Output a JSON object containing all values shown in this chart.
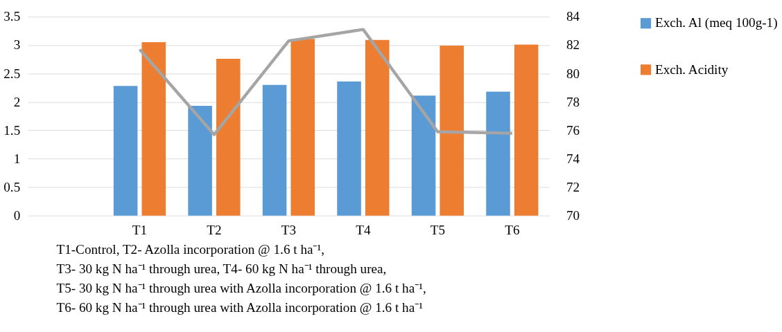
{
  "chart_data": {
    "type": "bar",
    "categories": [
      null,
      "T1",
      "T2",
      "T3",
      "T4",
      "T5",
      "T6"
    ],
    "series": [
      {
        "name": "Exch. Al (meq 100g-1)",
        "color": "#5b9bd5",
        "values": [
          null,
          2.28,
          1.93,
          2.3,
          2.36,
          2.11,
          2.18
        ]
      },
      {
        "name": "Exch. Acidity",
        "color": "#ed7d31",
        "values": [
          null,
          3.05,
          2.76,
          3.11,
          3.09,
          2.99,
          3.01
        ]
      },
      {
        "type": "line",
        "axis": "y2",
        "color": "#a5a5a5",
        "values": [
          null,
          81.7,
          75.7,
          82.3,
          83.1,
          75.9,
          75.8
        ]
      }
    ],
    "ylim": [
      0,
      3.5
    ],
    "yticks": [
      0,
      0.5,
      1,
      1.5,
      2,
      2.5,
      3,
      3.5
    ],
    "y2lim": [
      70,
      84
    ],
    "y2ticks": [
      70,
      72,
      74,
      76,
      78,
      80,
      82,
      84
    ],
    "grid": "y",
    "legend": "right",
    "line_style": "solid",
    "marker": "none",
    "annotations": [
      "T1-Control, T2- Azolla incorporation @ 1.6 t ha⁻¹,",
      "T3- 30 kg N ha⁻¹ through urea, T4- 60 kg N ha⁻¹ through urea,",
      "T5- 30 kg N ha⁻¹ through urea with Azolla incorporation @ 1.6 t ha⁻¹,",
      "T6- 60 kg N ha⁻¹ through urea with Azolla incorporation @ 1.6 t ha⁻¹"
    ]
  }
}
